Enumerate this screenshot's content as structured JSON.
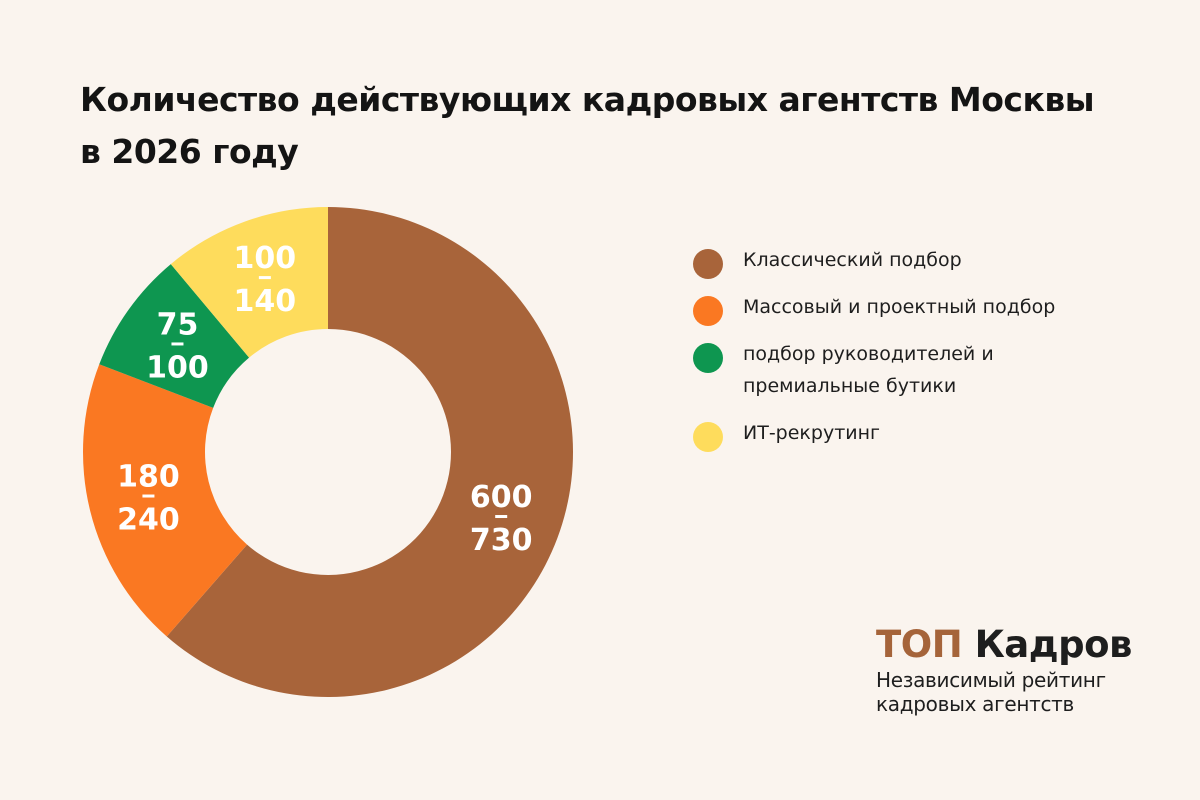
{
  "header": {
    "title_line1": "Количество действующих кадровых агентств Москвы",
    "title_line2": "в 2026 году"
  },
  "chart_data": {
    "type": "pie",
    "donut": true,
    "title": "Количество действующих кадровых агентств Москвы в 2026 году",
    "legend_position": "right",
    "slices": [
      {
        "name": "Классический подбор",
        "label_low": "600",
        "label_high": "730",
        "value": 665,
        "color": "#a8643a"
      },
      {
        "name": "Массовый и проектный подбор",
        "label_low": "180",
        "label_high": "240",
        "value": 210,
        "color": "#fa7822"
      },
      {
        "name": "подбор руководителей и премиальные бутики",
        "label_low": "75",
        "label_high": "100",
        "value": 87.5,
        "color": "#0e9650"
      },
      {
        "name": "ИТ-рекрутинг",
        "label_low": "100",
        "label_high": "140",
        "value": 120,
        "color": "#fedc5c"
      }
    ]
  },
  "legend": {
    "items": [
      {
        "line1": "Классический подбор",
        "line2": "",
        "color": "#a8643a"
      },
      {
        "line1": "Массовый и проектный подбор",
        "line2": "",
        "color": "#fa7822"
      },
      {
        "line1": "подбор руководителей и",
        "line2": "премиальные бутики",
        "color": "#0e9650"
      },
      {
        "line1": "ИТ-рекрутинг",
        "line2": "",
        "color": "#fedc5c"
      }
    ]
  },
  "brand": {
    "name_part1": "ТОП",
    "name_part2": "Кадров",
    "tagline_line1": "Независимый рейтинг",
    "tagline_line2": "кадровых агентств"
  }
}
